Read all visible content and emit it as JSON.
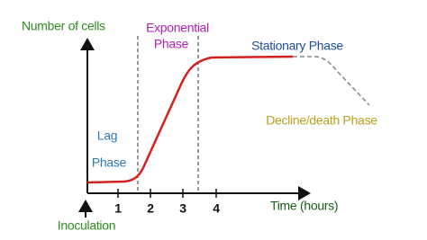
{
  "y_axis_label": "Number of cells",
  "x_axis_label": "Time (hours)",
  "x_ticks": [
    "1",
    "2",
    "3",
    "4"
  ],
  "phases": {
    "lag": [
      "Lag",
      "Phase"
    ],
    "exponential": [
      "Exponential",
      "Phase"
    ],
    "stationary": "Stationary Phase",
    "decline": "Decline/death Phase"
  },
  "inoculation": "Inoculation"
}
